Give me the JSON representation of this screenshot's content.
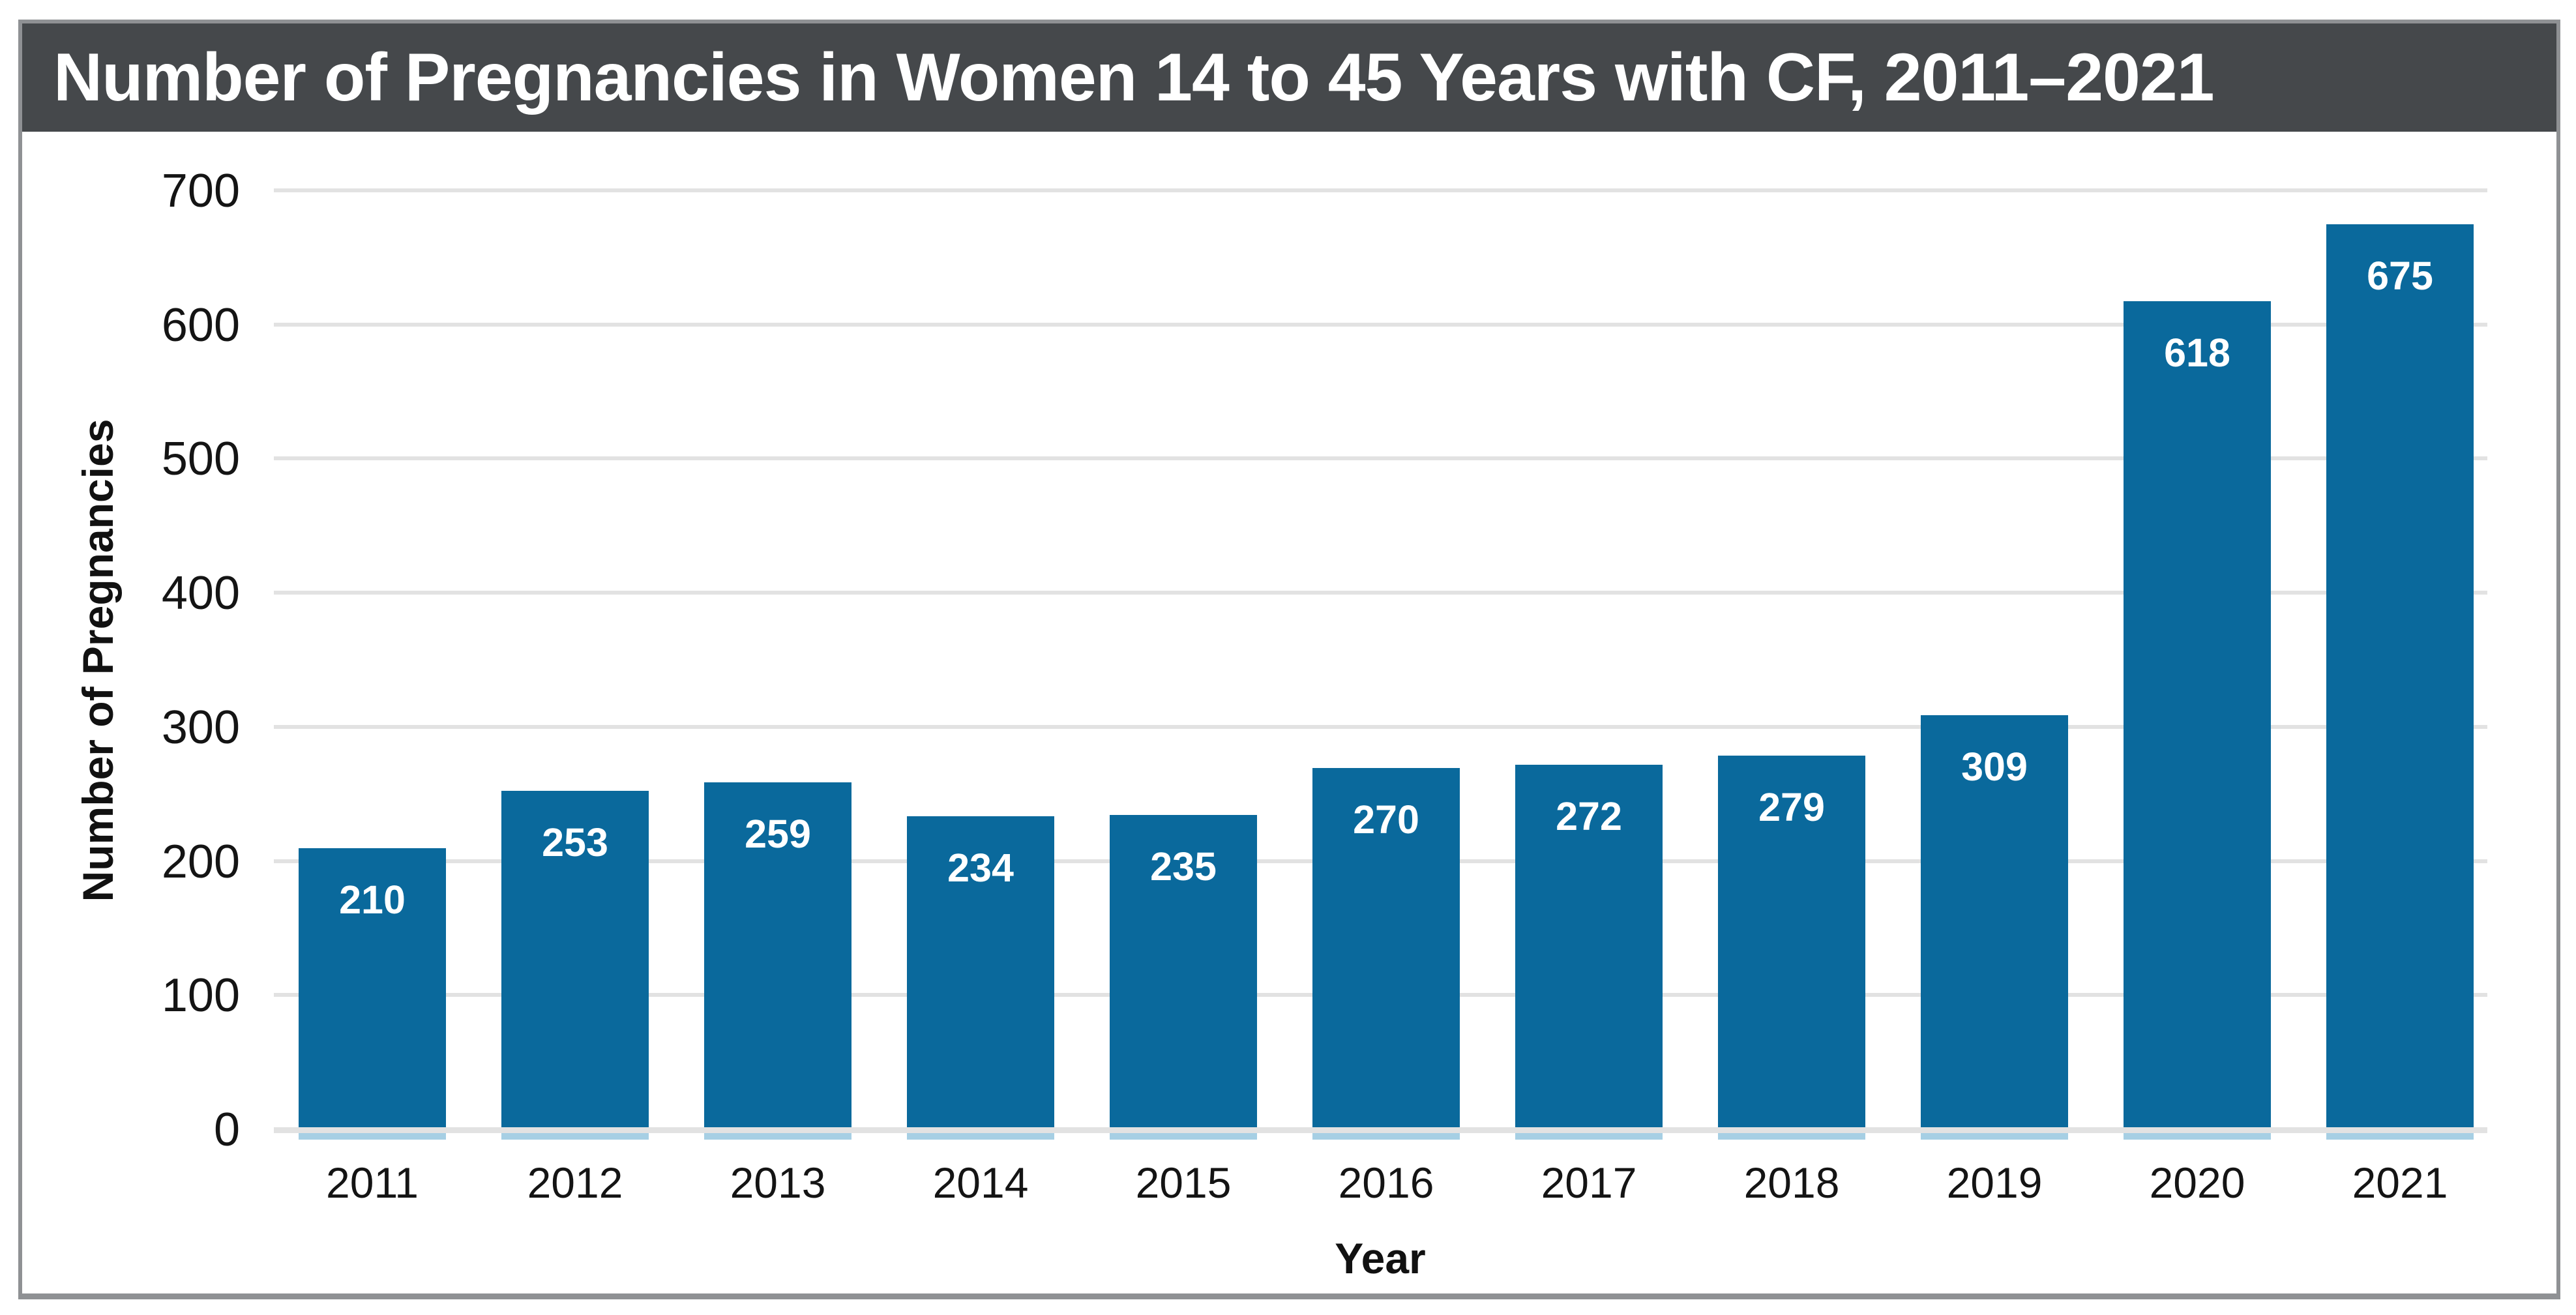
{
  "chart_data": {
    "type": "bar",
    "title": "Number of Pregnancies in Women 14 to 45 Years with CF, 2011–2021",
    "xlabel": "Year",
    "ylabel": "Number of Pregnancies",
    "categories": [
      "2011",
      "2012",
      "2013",
      "2014",
      "2015",
      "2016",
      "2017",
      "2018",
      "2019",
      "2020",
      "2021"
    ],
    "values": [
      210,
      253,
      259,
      234,
      235,
      270,
      272,
      279,
      309,
      618,
      675
    ],
    "ylim": [
      0,
      700
    ],
    "ytick_step": 100,
    "yticks": [
      "0",
      "100",
      "200",
      "300",
      "400",
      "500",
      "600",
      "700"
    ],
    "grid": "horizontal gridlines on, legend none, value labels inside bar tops"
  },
  "style": {
    "bar_color": "#0a699c",
    "bar_baseline_shadow_color": "#a6cfe4",
    "gridline_color": "#e2e2e2",
    "header_bg_color": "#45484b",
    "border_color": "#8f9194",
    "title_color": "#ffffff",
    "value_label_color": "#ffffff",
    "tick_label_color": "#141414"
  }
}
